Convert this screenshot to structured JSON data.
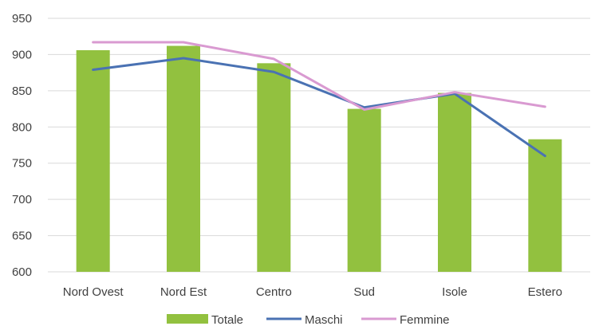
{
  "chart_data": {
    "type": "bar",
    "categories": [
      "Nord Ovest",
      "Nord Est",
      "Centro",
      "Sud",
      "Isole",
      "Estero"
    ],
    "ylim": [
      600,
      950
    ],
    "yticks": [
      600,
      650,
      700,
      750,
      800,
      850,
      900,
      950
    ],
    "grid": true,
    "legend_position": "bottom",
    "series": [
      {
        "name": "Totale",
        "kind": "bar",
        "color": "#92c13f",
        "values": [
          906,
          912,
          888,
          825,
          847,
          783
        ]
      },
      {
        "name": "Maschi",
        "kind": "line",
        "color": "#4a72b3",
        "values": [
          879,
          895,
          876,
          827,
          846,
          760
        ]
      },
      {
        "name": "Femmine",
        "kind": "line",
        "color": "#d99ad1",
        "values": [
          917,
          917,
          894,
          824,
          848,
          828
        ]
      }
    ]
  }
}
